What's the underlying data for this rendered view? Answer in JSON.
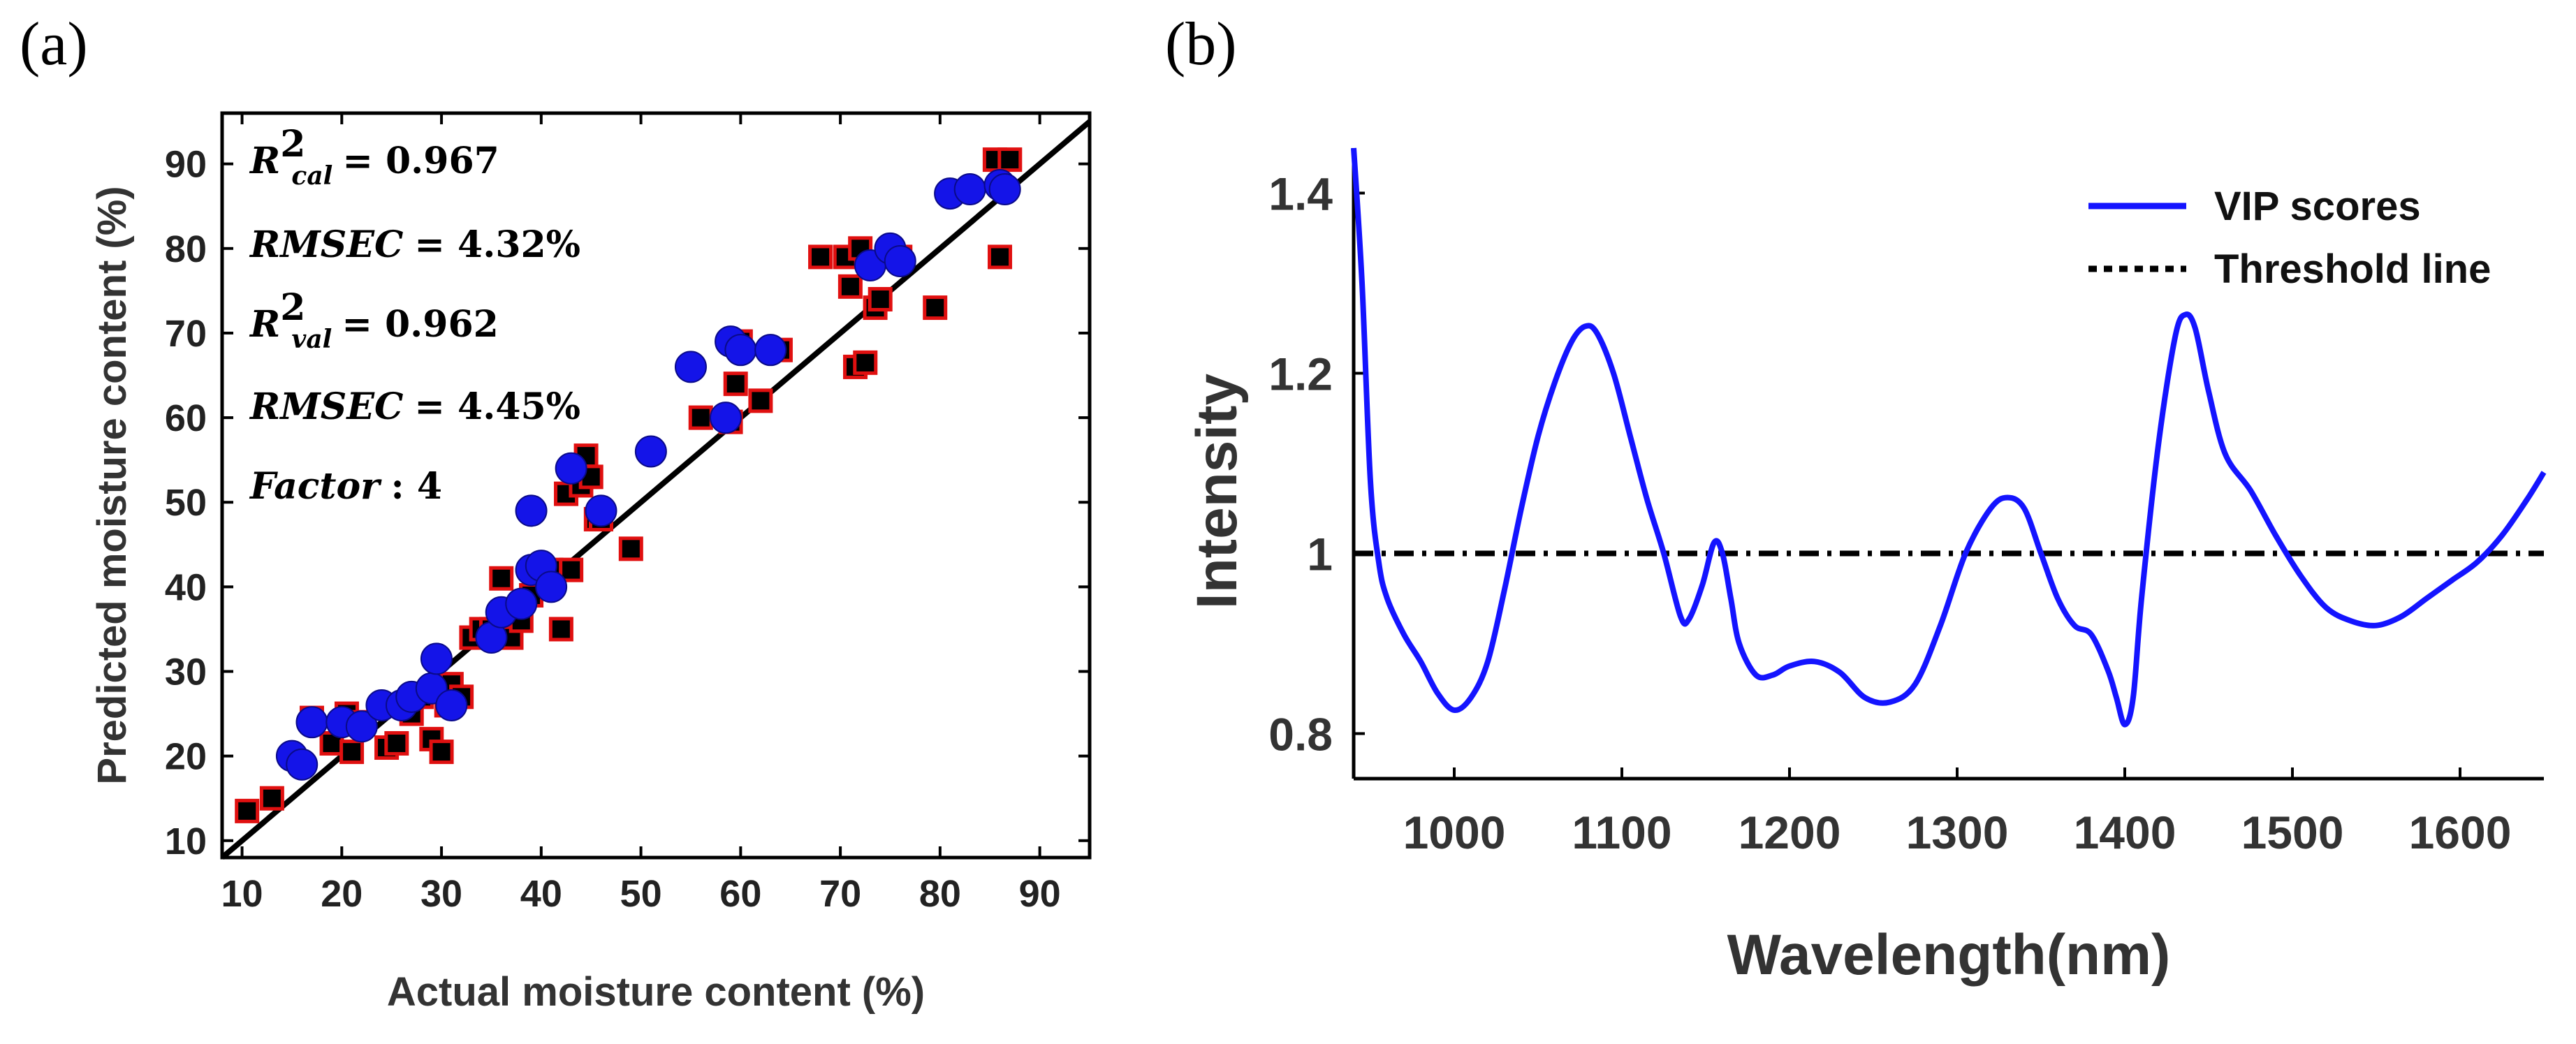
{
  "colors": {
    "cal_fill": "#000000",
    "cal_edge": "#e01010",
    "val_fill": "#1414e8",
    "line_fill": "#000000",
    "vip_line": "#1414ff",
    "threshold": "#000000"
  },
  "panel_a": {
    "label": "(a)",
    "annotations": [
      {
        "main": "R",
        "sup": "2",
        "sub": "cal",
        "rest": "= 0.967"
      },
      {
        "main": "RMSEC",
        "sup": "",
        "sub": "",
        "rest": "= 4.32%"
      },
      {
        "main": "R",
        "sup": "2",
        "sub": "val",
        "rest": "= 0.962"
      },
      {
        "main": "RMSEC",
        "sup": "",
        "sub": "",
        "rest": "= 4.45%"
      },
      {
        "main": "Factor",
        "sup": "",
        "sub": "",
        "rest": ": 4"
      }
    ]
  },
  "panel_b": {
    "label": "(b)"
  },
  "chart_data": [
    {
      "type": "scatter",
      "title": "",
      "xlabel": "Actual moisture content (%)",
      "ylabel": "Predicted moisture content (%)",
      "xlim": [
        8,
        95
      ],
      "ylim": [
        8,
        96
      ],
      "xticks": [
        10,
        20,
        30,
        40,
        50,
        60,
        70,
        80,
        90
      ],
      "yticks": [
        10,
        20,
        30,
        40,
        50,
        60,
        70,
        80,
        90
      ],
      "fit_line": {
        "x": [
          8,
          95
        ],
        "y": [
          8,
          95
        ]
      },
      "series": [
        {
          "name": "calibration",
          "marker": "square",
          "x": [
            10.5,
            13,
            17,
            19,
            20.5,
            21,
            22,
            24.5,
            25.5,
            26,
            27,
            28,
            29,
            30,
            30.5,
            31,
            32,
            33,
            34,
            35,
            36,
            37,
            38,
            39,
            40,
            41,
            42,
            42.5,
            43,
            44,
            44.5,
            45,
            45.5,
            46,
            49,
            56,
            59,
            59.5,
            60,
            62,
            64,
            68,
            70.5,
            71,
            71.5,
            72,
            72.5,
            73.5,
            74,
            76,
            79.5,
            85.5,
            86,
            87
          ],
          "y": [
            13.5,
            15,
            24.5,
            21.5,
            25,
            20.5,
            24,
            21,
            21.5,
            26,
            25,
            27,
            22,
            20.5,
            26,
            28.5,
            27,
            34,
            35,
            35,
            41,
            34,
            36,
            39,
            41.5,
            42,
            35,
            51,
            42,
            52,
            55.5,
            53,
            48,
            48,
            44.5,
            60,
            59.5,
            64,
            69,
            62,
            68,
            79,
            79,
            75.5,
            66,
            80,
            66.5,
            73,
            74,
            79,
            73,
            90.5,
            79,
            90.5
          ]
        },
        {
          "name": "validation",
          "marker": "circle",
          "x": [
            15,
            16,
            17,
            20,
            22,
            24,
            26,
            27,
            29,
            29.5,
            31,
            35,
            36,
            38,
            39,
            39,
            40,
            41,
            43,
            46,
            51,
            55,
            58.5,
            59,
            60,
            63,
            73,
            75,
            76,
            81,
            83,
            86,
            86.5
          ],
          "y": [
            20,
            19,
            24,
            24,
            23.5,
            26,
            26,
            27,
            28,
            31.5,
            26,
            34,
            37,
            38,
            42,
            49,
            42.5,
            40,
            54,
            49,
            56,
            66,
            60,
            69,
            68,
            68,
            78,
            80,
            78.5,
            86.5,
            87,
            87.5,
            87
          ]
        }
      ]
    },
    {
      "type": "line",
      "title": "",
      "xlabel": "Wavelength(nm)",
      "ylabel": "Intensity",
      "xlim": [
        940,
        1650
      ],
      "ylim": [
        0.75,
        1.45
      ],
      "xticks": [
        1000,
        1100,
        1200,
        1300,
        1400,
        1500,
        1600
      ],
      "yticks": [
        0.8,
        1,
        1.2,
        1.4
      ],
      "ytick_labels": [
        "0.8",
        "1",
        "1.2",
        "1.4"
      ],
      "legend": {
        "position": "top-right",
        "entries": [
          "VIP scores",
          "Threshold line"
        ]
      },
      "series": [
        {
          "name": "VIP scores",
          "x": [
            940,
            945,
            950,
            955,
            960,
            970,
            980,
            990,
            1000,
            1010,
            1020,
            1030,
            1040,
            1050,
            1060,
            1070,
            1078,
            1085,
            1095,
            1105,
            1115,
            1125,
            1135,
            1140,
            1148,
            1155,
            1160,
            1165,
            1170,
            1180,
            1190,
            1200,
            1215,
            1230,
            1245,
            1260,
            1275,
            1290,
            1305,
            1320,
            1330,
            1340,
            1350,
            1360,
            1370,
            1380,
            1390,
            1395,
            1400,
            1405,
            1410,
            1420,
            1430,
            1436,
            1442,
            1450,
            1460,
            1475,
            1490,
            1505,
            1520,
            1535,
            1550,
            1565,
            1580,
            1595,
            1610,
            1625,
            1640,
            1650
          ],
          "y": [
            1.45,
            1.3,
            1.08,
            0.99,
            0.95,
            0.91,
            0.88,
            0.845,
            0.826,
            0.84,
            0.88,
            0.96,
            1.05,
            1.13,
            1.19,
            1.235,
            1.252,
            1.245,
            1.2,
            1.13,
            1.06,
            1.0,
            0.93,
            0.927,
            0.965,
            1.012,
            1.0,
            0.95,
            0.9,
            0.865,
            0.865,
            0.875,
            0.88,
            0.868,
            0.84,
            0.835,
            0.855,
            0.92,
            1.0,
            1.05,
            1.062,
            1.05,
            1.0,
            0.95,
            0.92,
            0.91,
            0.87,
            0.84,
            0.81,
            0.84,
            0.95,
            1.12,
            1.24,
            1.265,
            1.25,
            1.18,
            1.11,
            1.07,
            1.02,
            0.975,
            0.94,
            0.925,
            0.92,
            0.93,
            0.95,
            0.97,
            0.99,
            1.02,
            1.06,
            1.09
          ]
        },
        {
          "name": "Threshold line",
          "x": [
            940,
            1650
          ],
          "y": [
            1.0,
            1.0
          ]
        }
      ]
    }
  ]
}
